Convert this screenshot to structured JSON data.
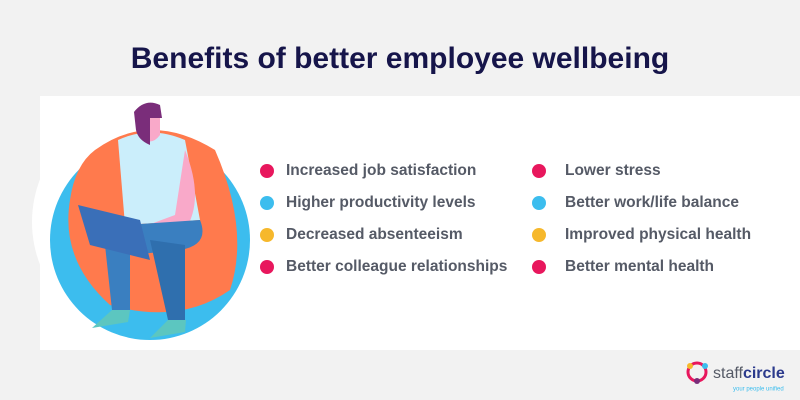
{
  "title": "Benefits of better employee wellbeing",
  "benefits": {
    "left": [
      {
        "text": "Increased job satisfaction",
        "color": "#e8175d"
      },
      {
        "text": "Higher productivity levels",
        "color": "#3cbdee"
      },
      {
        "text": "Decreased absenteeism",
        "color": "#f6b82c"
      },
      {
        "text": "Better colleague relationships",
        "color": "#e8175d"
      }
    ],
    "right": [
      {
        "text": "Lower stress",
        "color": "#e8175d"
      },
      {
        "text": "Better work/life balance",
        "color": "#3cbdee"
      },
      {
        "text": "Improved physical health",
        "color": "#f6b82c"
      },
      {
        "text": "Better mental health",
        "color": "#e8175d"
      }
    ]
  },
  "logo": {
    "name_start": "staff",
    "name_end": "circle",
    "tagline": "your people unified"
  }
}
